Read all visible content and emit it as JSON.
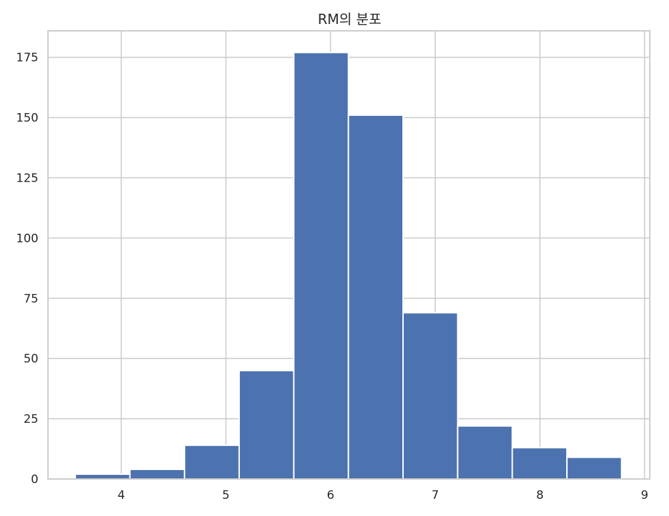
{
  "chart_data": {
    "type": "bar",
    "title": "RM의 분포",
    "xlabel": "",
    "ylabel": "",
    "bins": [
      [
        3.561,
        4.0829
      ],
      [
        4.0829,
        4.6048
      ],
      [
        4.6048,
        5.1267
      ],
      [
        5.1267,
        5.6486
      ],
      [
        5.6486,
        6.1705
      ],
      [
        6.1705,
        6.6924
      ],
      [
        6.6924,
        7.2143
      ],
      [
        7.2143,
        7.7362
      ],
      [
        7.7362,
        8.2581
      ],
      [
        8.2581,
        8.78
      ]
    ],
    "values": [
      2,
      4,
      14,
      45,
      177,
      151,
      69,
      22,
      13,
      9
    ],
    "xlim": [
      3.3,
      9.05
    ],
    "ylim": [
      0,
      186
    ],
    "xticks": [
      4,
      5,
      6,
      7,
      8,
      9
    ],
    "yticks": [
      0,
      25,
      50,
      75,
      100,
      125,
      150,
      175
    ],
    "grid": true,
    "bar_color": "#4C72B0",
    "grid_color": "#CCCCCC"
  }
}
